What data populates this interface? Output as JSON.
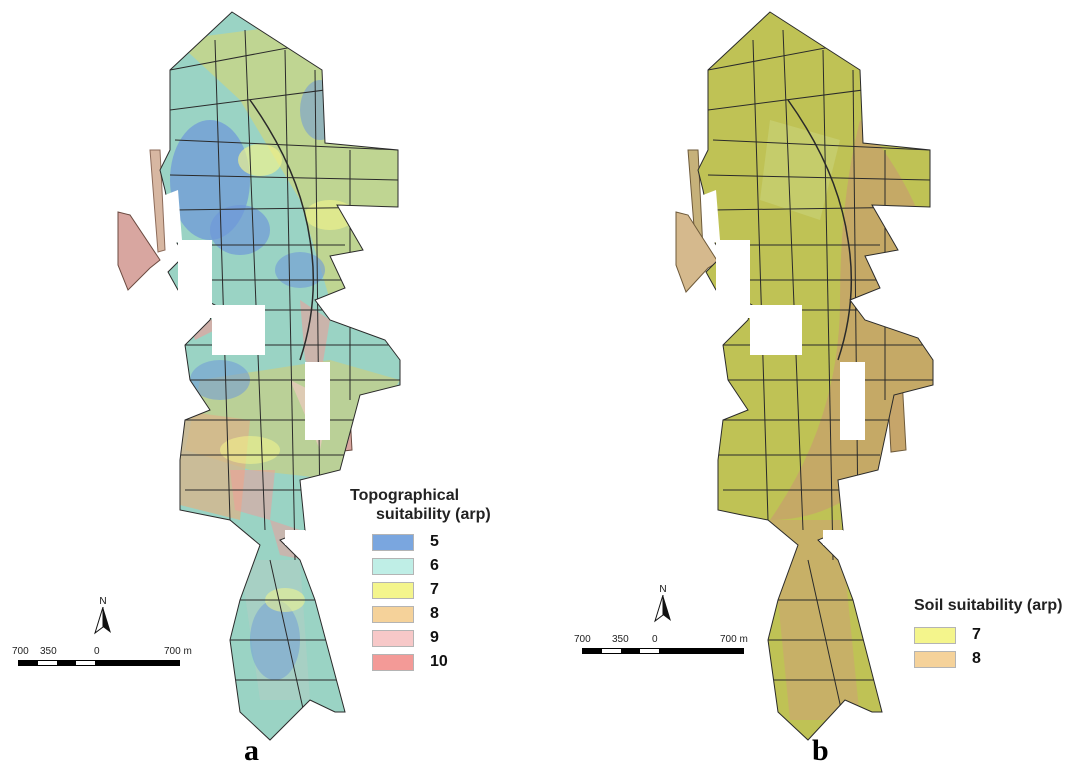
{
  "panel_a": {
    "label": "a",
    "legend": {
      "title_line1": "Topographical",
      "title_line2": "suitability (arp)",
      "items": [
        {
          "label": "5",
          "color": "#7aa6df"
        },
        {
          "label": "6",
          "color": "#bfeee6"
        },
        {
          "label": "7",
          "color": "#f4f58c"
        },
        {
          "label": "8",
          "color": "#f5d29a"
        },
        {
          "label": "9",
          "color": "#f7c8c8"
        },
        {
          "label": "10",
          "color": "#f39a97"
        }
      ]
    },
    "scale": {
      "ticks": [
        "700",
        "350",
        "0",
        "700 m"
      ]
    },
    "north": "N"
  },
  "panel_b": {
    "label": "b",
    "legend": {
      "title": "Soil suitability (arp)",
      "items": [
        {
          "label": "7",
          "color": "#f4f58c"
        },
        {
          "label": "8",
          "color": "#f5d29a"
        }
      ]
    },
    "scale": {
      "ticks": [
        "700",
        "350",
        "0",
        "700 m"
      ]
    },
    "north": "N"
  },
  "colors": {
    "soil_base": "#bfc255",
    "soil_high": "#c6a56a",
    "topo_base": "#9ad3c4",
    "field_line": "#2a2a2a"
  }
}
